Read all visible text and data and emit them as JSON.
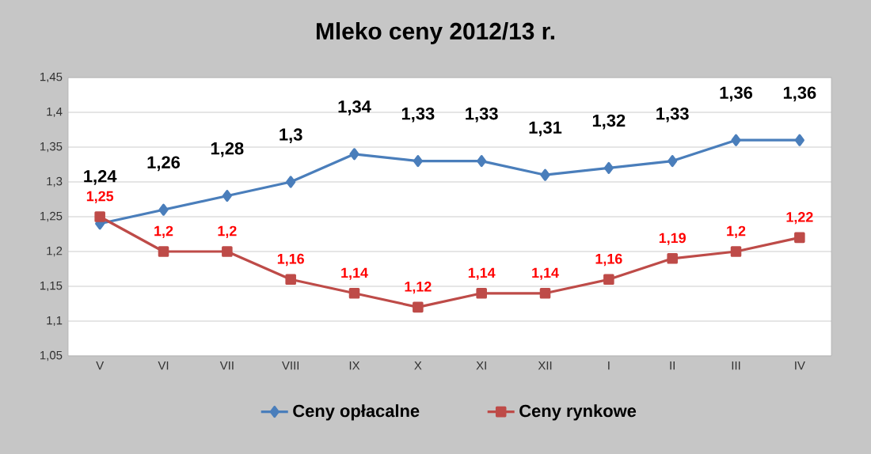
{
  "chart_data": {
    "type": "line",
    "title": "Mleko ceny 2012/13 r.",
    "categories": [
      "V",
      "VI",
      "VII",
      "VIII",
      "IX",
      "X",
      "XI",
      "XII",
      "I",
      "II",
      "III",
      "IV"
    ],
    "series": [
      {
        "name": "Ceny opłacalne",
        "color": "#4a7ebb",
        "marker": "diamond",
        "values": [
          1.24,
          1.26,
          1.28,
          1.3,
          1.34,
          1.33,
          1.33,
          1.31,
          1.32,
          1.33,
          1.36,
          1.36
        ],
        "value_labels": [
          "1,24",
          "1,26",
          "1,28",
          "1,3",
          "1,34",
          "1,33",
          "1,33",
          "1,31",
          "1,32",
          "1,33",
          "1,36",
          "1,36"
        ]
      },
      {
        "name": "Ceny rynkowe",
        "color": "#be4b48",
        "marker": "square",
        "values": [
          1.25,
          1.2,
          1.2,
          1.16,
          1.14,
          1.12,
          1.14,
          1.14,
          1.16,
          1.19,
          1.2,
          1.22
        ],
        "value_labels": [
          "1,25",
          "1,2",
          "1,2",
          "1,16",
          "1,14",
          "1,12",
          "1,14",
          "1,14",
          "1,16",
          "1,19",
          "1,2",
          "1,22"
        ]
      }
    ],
    "ylim": [
      1.05,
      1.45
    ],
    "yticks": [
      {
        "value": 1.05,
        "label": "1,05"
      },
      {
        "value": 1.1,
        "label": "1,1"
      },
      {
        "value": 1.15,
        "label": "1,15"
      },
      {
        "value": 1.2,
        "label": "1,2"
      },
      {
        "value": 1.25,
        "label": "1,25"
      },
      {
        "value": 1.3,
        "label": "1,3"
      },
      {
        "value": 1.35,
        "label": "1,35"
      },
      {
        "value": 1.4,
        "label": "1,4"
      },
      {
        "value": 1.45,
        "label": "1,45"
      }
    ],
    "grid": "y",
    "legend": "bottom",
    "line_style": "solid"
  }
}
